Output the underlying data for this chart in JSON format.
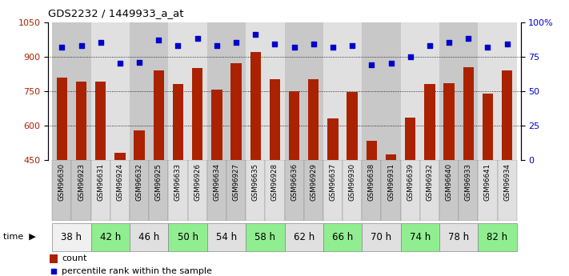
{
  "title": "GDS2232 / 1449933_a_at",
  "samples": [
    "GSM96630",
    "GSM96923",
    "GSM96631",
    "GSM96924",
    "GSM96632",
    "GSM96925",
    "GSM96633",
    "GSM96926",
    "GSM96634",
    "GSM96927",
    "GSM96635",
    "GSM96928",
    "GSM96636",
    "GSM96929",
    "GSM96637",
    "GSM96930",
    "GSM96638",
    "GSM96931",
    "GSM96639",
    "GSM96932",
    "GSM96640",
    "GSM96933",
    "GSM96641",
    "GSM96934"
  ],
  "counts": [
    810,
    790,
    790,
    480,
    580,
    840,
    780,
    850,
    755,
    870,
    920,
    800,
    750,
    800,
    630,
    745,
    535,
    475,
    635,
    780,
    785,
    855,
    740,
    840
  ],
  "percentiles": [
    82,
    83,
    85,
    70,
    71,
    87,
    83,
    88,
    83,
    85,
    91,
    84,
    82,
    84,
    82,
    83,
    69,
    70,
    75,
    83,
    85,
    88,
    82,
    84
  ],
  "time_labels": [
    "38 h",
    "42 h",
    "46 h",
    "50 h",
    "54 h",
    "58 h",
    "62 h",
    "66 h",
    "70 h",
    "74 h",
    "78 h",
    "82 h"
  ],
  "time_group_starts": [
    0,
    2,
    4,
    6,
    8,
    10,
    12,
    14,
    16,
    18,
    20,
    22
  ],
  "bar_color": "#AA2200",
  "dot_color": "#0000CC",
  "ylim_left": [
    450,
    1050
  ],
  "ylim_right": [
    0,
    100
  ],
  "yticks_left": [
    450,
    600,
    750,
    900,
    1050
  ],
  "yticks_right": [
    0,
    25,
    50,
    75,
    100
  ],
  "plot_bg_color": "#ffffff",
  "green_bg": "#90EE90",
  "grey_bg": "#d3d3d3",
  "sample_bg_dark": "#c8c8c8",
  "sample_bg_light": "#e0e0e0",
  "time_white": "#f0f0f0"
}
